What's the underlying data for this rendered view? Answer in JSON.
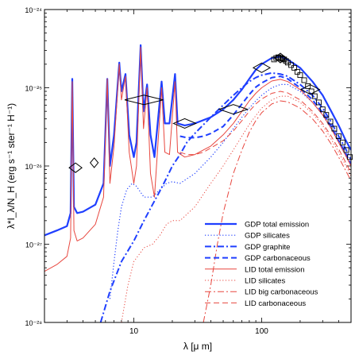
{
  "chart_data": {
    "type": "line",
    "xlabel": "λ [μ m]",
    "ylabel": "λ*I_λ/N_H (erg s⁻¹ ster⁻¹ H⁻¹)",
    "x_scale": "log",
    "y_scale": "log",
    "xlim": [
      2,
      500
    ],
    "ylim": [
      1e-28,
      1e-24
    ],
    "x_ticks": [
      10,
      100
    ],
    "x_tick_labels": [
      "10",
      "100"
    ],
    "y_ticks": [
      1e-28,
      1e-27,
      1e-26,
      1e-25,
      1e-24
    ],
    "y_tick_labels": [
      "10⁻²⁸",
      "10⁻²⁷",
      "10⁻²⁶",
      "10⁻²⁵",
      "10⁻²⁴"
    ],
    "legend_position": "bottom-right",
    "series": [
      {
        "name": "GDP total emission",
        "color": "#1f3fff",
        "style": "solid",
        "width": 2.2,
        "points": [
          [
            2,
            1.3e-27
          ],
          [
            2.5,
            1.5e-27
          ],
          [
            3.0,
            1.7e-27
          ],
          [
            3.2,
            2.5e-27
          ],
          [
            3.3,
            1.3e-25
          ],
          [
            3.4,
            3e-27
          ],
          [
            3.6,
            2.5e-27
          ],
          [
            4.0,
            2.6e-27
          ],
          [
            5.0,
            3.2e-27
          ],
          [
            5.8,
            6e-27
          ],
          [
            6.2,
            1.3e-25
          ],
          [
            6.5,
            1e-26
          ],
          [
            7.0,
            2.5e-26
          ],
          [
            7.7,
            2.1e-25
          ],
          [
            8.0,
            9e-26
          ],
          [
            8.6,
            1.5e-25
          ],
          [
            9.2,
            2.5e-26
          ],
          [
            10.0,
            1.3e-26
          ],
          [
            10.5,
            2e-26
          ],
          [
            11.3,
            3.5e-25
          ],
          [
            11.9,
            5e-26
          ],
          [
            12.7,
            1.1e-25
          ],
          [
            13.5,
            2.5e-26
          ],
          [
            14.5,
            1.3e-26
          ],
          [
            16.5,
            1.2e-25
          ],
          [
            17.5,
            3.5e-26
          ],
          [
            19,
            3.5e-26
          ],
          [
            21,
            1.5e-25
          ],
          [
            22,
            3.5e-26
          ],
          [
            25,
            3.3e-26
          ],
          [
            30,
            3.5e-26
          ],
          [
            40,
            4.2e-26
          ],
          [
            50,
            5.3e-26
          ],
          [
            60,
            7e-26
          ],
          [
            70,
            9.5e-26
          ],
          [
            80,
            1.3e-25
          ],
          [
            90,
            1.7e-25
          ],
          [
            100,
            2e-25
          ],
          [
            120,
            2.4e-25
          ],
          [
            140,
            2.5e-25
          ],
          [
            160,
            2.3e-25
          ],
          [
            200,
            1.8e-25
          ],
          [
            250,
            1.2e-25
          ],
          [
            300,
            8e-26
          ],
          [
            350,
            5e-26
          ],
          [
            400,
            3.3e-26
          ],
          [
            450,
            2.2e-26
          ],
          [
            500,
            1.6e-26
          ]
        ]
      },
      {
        "name": "GDP silicates",
        "color": "#1f3fff",
        "style": "dotted",
        "width": 1.2,
        "points": [
          [
            6.5,
            2e-28
          ],
          [
            7.0,
            6e-28
          ],
          [
            7.5,
            1.5e-27
          ],
          [
            8.0,
            3e-27
          ],
          [
            8.8,
            5e-27
          ],
          [
            9.7,
            6e-27
          ],
          [
            10.5,
            5.5e-27
          ],
          [
            12,
            4e-27
          ],
          [
            14,
            4e-27
          ],
          [
            16,
            5e-27
          ],
          [
            18,
            6e-27
          ],
          [
            20,
            6.3e-27
          ],
          [
            23,
            6e-27
          ],
          [
            30,
            8e-27
          ],
          [
            40,
            1.3e-26
          ],
          [
            50,
            2e-26
          ],
          [
            60,
            3e-26
          ],
          [
            70,
            4.2e-26
          ],
          [
            80,
            5.5e-26
          ],
          [
            90,
            6.8e-26
          ],
          [
            100,
            8e-26
          ],
          [
            120,
            1e-25
          ],
          [
            140,
            1.1e-25
          ],
          [
            160,
            1.1e-25
          ],
          [
            200,
            9e-26
          ],
          [
            250,
            6.5e-26
          ],
          [
            300,
            4.5e-26
          ],
          [
            350,
            3e-26
          ],
          [
            400,
            2e-26
          ],
          [
            450,
            1.4e-26
          ],
          [
            500,
            1e-26
          ]
        ]
      },
      {
        "name": "GDP graphite",
        "color": "#1f3fff",
        "style": "dashdot",
        "width": 2.0,
        "points": [
          [
            5.5,
            1e-28
          ],
          [
            6.5,
            2.5e-28
          ],
          [
            8,
            6e-28
          ],
          [
            10,
            1.1e-27
          ],
          [
            12,
            2e-27
          ],
          [
            14,
            3.2e-27
          ],
          [
            16,
            4.8e-27
          ],
          [
            18,
            7e-27
          ],
          [
            20,
            1e-26
          ],
          [
            23,
            1.4e-26
          ],
          [
            26,
            2e-26
          ],
          [
            30,
            2.6e-26
          ],
          [
            40,
            4.2e-26
          ],
          [
            50,
            6e-26
          ],
          [
            60,
            8e-26
          ],
          [
            70,
            1e-25
          ],
          [
            80,
            1.2e-25
          ],
          [
            90,
            1.35e-25
          ],
          [
            100,
            1.45e-25
          ],
          [
            120,
            1.55e-25
          ],
          [
            140,
            1.5e-25
          ],
          [
            160,
            1.4e-25
          ],
          [
            200,
            1.1e-25
          ],
          [
            250,
            8e-26
          ],
          [
            300,
            5.5e-26
          ],
          [
            350,
            3.6e-26
          ],
          [
            400,
            2.4e-26
          ],
          [
            450,
            1.7e-26
          ],
          [
            500,
            1.2e-26
          ]
        ]
      },
      {
        "name": "GDP carbonaceous",
        "color": "#1f3fff",
        "style": "dashed",
        "width": 2.0,
        "points": [
          [
            23,
            2.4e-26
          ],
          [
            26,
            2.3e-26
          ],
          [
            30,
            2.3e-26
          ],
          [
            35,
            2.4e-26
          ],
          [
            40,
            2.6e-26
          ],
          [
            50,
            3.2e-26
          ],
          [
            60,
            4.5e-26
          ],
          [
            70,
            6.2e-26
          ],
          [
            80,
            8.2e-26
          ],
          [
            90,
            1.02e-25
          ],
          [
            100,
            1.15e-25
          ],
          [
            120,
            1.35e-25
          ],
          [
            140,
            1.4e-25
          ],
          [
            160,
            1.3e-25
          ],
          [
            200,
            1e-25
          ],
          [
            250,
            7e-26
          ],
          [
            300,
            4.8e-26
          ],
          [
            350,
            3.2e-26
          ],
          [
            400,
            2.1e-26
          ],
          [
            450,
            1.5e-26
          ],
          [
            500,
            1.05e-26
          ]
        ]
      },
      {
        "name": "LID total emission",
        "color": "#e8473f",
        "style": "solid",
        "width": 1.0,
        "points": [
          [
            2,
            4.5e-28
          ],
          [
            2.5,
            5.5e-28
          ],
          [
            3.0,
            7e-28
          ],
          [
            3.2,
            1.2e-27
          ],
          [
            3.3,
            1.2e-25
          ],
          [
            3.4,
            1.5e-27
          ],
          [
            3.6,
            1.1e-27
          ],
          [
            4.0,
            1.2e-27
          ],
          [
            5.0,
            1.8e-27
          ],
          [
            5.8,
            4e-27
          ],
          [
            6.2,
            1.3e-25
          ],
          [
            6.5,
            6e-27
          ],
          [
            7.0,
            1.8e-26
          ],
          [
            7.7,
            2e-25
          ],
          [
            8.0,
            7e-26
          ],
          [
            8.6,
            1.4e-25
          ],
          [
            9.2,
            1.5e-26
          ],
          [
            10.0,
            6e-27
          ],
          [
            10.5,
            1e-26
          ],
          [
            11.3,
            3.3e-25
          ],
          [
            11.9,
            3e-26
          ],
          [
            12.7,
            1e-25
          ],
          [
            13.5,
            8e-27
          ],
          [
            14.5,
            4e-27
          ],
          [
            16.5,
            1e-25
          ],
          [
            17.5,
            1.5e-26
          ],
          [
            19,
            1.4e-26
          ],
          [
            21,
            1.2e-25
          ],
          [
            22,
            1.5e-26
          ],
          [
            25,
            1.3e-26
          ],
          [
            30,
            1.4e-26
          ],
          [
            40,
            1.8e-26
          ],
          [
            50,
            2.5e-26
          ],
          [
            60,
            3.5e-26
          ],
          [
            70,
            5e-26
          ],
          [
            80,
            6.8e-26
          ],
          [
            90,
            8.5e-26
          ],
          [
            100,
            1e-25
          ],
          [
            120,
            1.22e-25
          ],
          [
            140,
            1.28e-25
          ],
          [
            160,
            1.2e-25
          ],
          [
            200,
            9.5e-26
          ],
          [
            250,
            6.5e-26
          ],
          [
            300,
            4.5e-26
          ],
          [
            350,
            3e-26
          ],
          [
            400,
            2e-26
          ],
          [
            450,
            1.4e-26
          ],
          [
            500,
            1e-26
          ]
        ]
      },
      {
        "name": "LID silicates",
        "color": "#e8473f",
        "style": "dotted",
        "width": 1.0,
        "points": [
          [
            8,
            1e-28
          ],
          [
            9,
            3e-28
          ],
          [
            10,
            6e-28
          ],
          [
            12,
            9e-28
          ],
          [
            14,
            1e-27
          ],
          [
            16,
            1.3e-27
          ],
          [
            18,
            1.8e-27
          ],
          [
            20,
            2e-27
          ],
          [
            23,
            2e-27
          ],
          [
            30,
            3e-27
          ],
          [
            40,
            6e-27
          ],
          [
            50,
            1e-26
          ],
          [
            60,
            1.6e-26
          ],
          [
            70,
            2.4e-26
          ],
          [
            80,
            3.4e-26
          ],
          [
            90,
            4.4e-26
          ],
          [
            100,
            5.5e-26
          ],
          [
            120,
            7e-26
          ],
          [
            140,
            7.8e-26
          ],
          [
            160,
            7.8e-26
          ],
          [
            200,
            6.5e-26
          ],
          [
            250,
            4.7e-26
          ],
          [
            300,
            3.3e-26
          ],
          [
            350,
            2.2e-26
          ],
          [
            400,
            1.5e-26
          ],
          [
            450,
            1.05e-26
          ],
          [
            500,
            7.5e-27
          ]
        ]
      },
      {
        "name": "LID big carbonaceous",
        "color": "#e8473f",
        "style": "dashdot",
        "width": 1.0,
        "points": [
          [
            35,
            1e-28
          ],
          [
            40,
            3e-28
          ],
          [
            45,
            1e-27
          ],
          [
            50,
            2.5e-27
          ],
          [
            60,
            8e-27
          ],
          [
            70,
            1.6e-26
          ],
          [
            80,
            2.7e-26
          ],
          [
            90,
            3.8e-26
          ],
          [
            100,
            4.8e-26
          ],
          [
            120,
            6.2e-26
          ],
          [
            140,
            6.8e-26
          ],
          [
            160,
            6.6e-26
          ],
          [
            200,
            5.5e-26
          ],
          [
            250,
            4e-26
          ],
          [
            300,
            2.8e-26
          ],
          [
            350,
            1.9e-26
          ],
          [
            400,
            1.3e-26
          ],
          [
            450,
            9e-27
          ],
          [
            500,
            6.5e-27
          ]
        ]
      },
      {
        "name": "LID carbonaceous",
        "color": "#e8473f",
        "style": "dashed",
        "width": 1.0,
        "points": [
          [
            23,
            1.5e-26
          ],
          [
            26,
            1.4e-26
          ],
          [
            30,
            1.4e-26
          ],
          [
            35,
            1.5e-26
          ],
          [
            40,
            1.7e-26
          ],
          [
            50,
            2.1e-26
          ],
          [
            60,
            2.8e-26
          ],
          [
            70,
            3.8e-26
          ],
          [
            80,
            5e-26
          ],
          [
            90,
            6.2e-26
          ],
          [
            100,
            7.2e-26
          ],
          [
            120,
            8.5e-26
          ],
          [
            140,
            9e-26
          ],
          [
            160,
            8.6e-26
          ],
          [
            200,
            7e-26
          ],
          [
            250,
            5e-26
          ],
          [
            300,
            3.5e-26
          ],
          [
            350,
            2.4e-26
          ],
          [
            400,
            1.65e-26
          ],
          [
            450,
            1.15e-26
          ],
          [
            500,
            8.2e-27
          ]
        ]
      }
    ],
    "observations": {
      "diamonds": [
        {
          "x": 3.5,
          "y": 9.5e-27,
          "x_err": 0.4
        },
        {
          "x": 4.9,
          "y": 1.1e-26,
          "x_err": 0
        },
        {
          "x": 12,
          "y": 7e-26,
          "x_err": 4
        },
        {
          "x": 25,
          "y": 3.5e-26,
          "x_err": 5
        },
        {
          "x": 60,
          "y": 5.3e-26,
          "x_err": 15
        },
        {
          "x": 100,
          "y": 1.8e-25,
          "x_err": 15
        },
        {
          "x": 140,
          "y": 2.4e-25,
          "x_err": 15
        },
        {
          "x": 240,
          "y": 9.5e-26,
          "x_err": 40
        }
      ],
      "squares": [
        [
          125,
          2.3e-25
        ],
        [
          130,
          2.4e-25
        ],
        [
          135,
          2.45e-25
        ],
        [
          140,
          2.4e-25
        ],
        [
          145,
          2.35e-25
        ],
        [
          150,
          2.3e-25
        ],
        [
          155,
          2.2e-25
        ],
        [
          160,
          2.1e-25
        ],
        [
          170,
          1.95e-25
        ],
        [
          180,
          1.8e-25
        ],
        [
          190,
          1.6e-25
        ],
        [
          200,
          1.45e-25
        ],
        [
          215,
          1.25e-25
        ],
        [
          230,
          1.05e-25
        ],
        [
          245,
          9e-26
        ],
        [
          260,
          7.8e-26
        ],
        [
          280,
          6.5e-26
        ],
        [
          300,
          5.3e-26
        ],
        [
          320,
          4.5e-26
        ],
        [
          345,
          3.7e-26
        ],
        [
          370,
          3e-26
        ],
        [
          400,
          2.4e-26
        ],
        [
          430,
          2e-26
        ],
        [
          460,
          1.6e-26
        ],
        [
          490,
          1.3e-26
        ]
      ]
    }
  }
}
